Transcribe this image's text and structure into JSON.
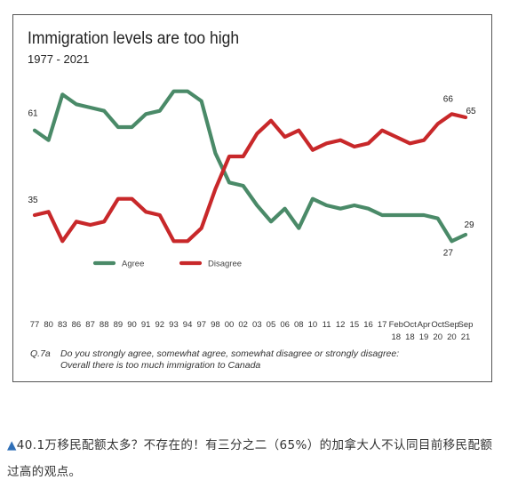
{
  "chart_data": {
    "type": "line",
    "title": "Immigration levels are too high",
    "subtitle": "1977 - 2021",
    "x_labels": [
      [
        "77"
      ],
      [
        "80"
      ],
      [
        "83"
      ],
      [
        "86"
      ],
      [
        "87"
      ],
      [
        "88"
      ],
      [
        "89"
      ],
      [
        "90"
      ],
      [
        "91"
      ],
      [
        "92"
      ],
      [
        "93"
      ],
      [
        "94"
      ],
      [
        "97"
      ],
      [
        "98"
      ],
      [
        "00"
      ],
      [
        "02"
      ],
      [
        "03"
      ],
      [
        "05"
      ],
      [
        "06"
      ],
      [
        "08"
      ],
      [
        "10"
      ],
      [
        "11"
      ],
      [
        "12"
      ],
      [
        "15"
      ],
      [
        "16"
      ],
      [
        "17"
      ],
      [
        "Feb",
        "18"
      ],
      [
        "Oct",
        "18"
      ],
      [
        "Apr",
        "19"
      ],
      [
        "Oct",
        "20"
      ],
      [
        "Sep",
        "20"
      ],
      [
        "Sep",
        "21"
      ]
    ],
    "series": [
      {
        "name": "Agree",
        "color": "#4a8a68",
        "values": [
          61,
          58,
          72,
          69,
          68,
          67,
          62,
          62,
          66,
          67,
          73,
          73,
          70,
          54,
          45,
          44,
          38,
          33,
          37,
          31,
          40,
          38,
          37,
          38,
          37,
          35,
          35,
          35,
          35,
          34,
          27,
          29
        ]
      },
      {
        "name": "Disagree",
        "color": "#c8282a",
        "values": [
          35,
          36,
          27,
          33,
          32,
          33,
          40,
          40,
          36,
          35,
          27,
          27,
          31,
          43,
          53,
          53,
          60,
          64,
          59,
          61,
          55,
          57,
          58,
          56,
          57,
          61,
          59,
          57,
          58,
          63,
          66,
          65
        ]
      }
    ],
    "data_labels": [
      {
        "series": "Agree",
        "index": 0,
        "text": "61"
      },
      {
        "series": "Disagree",
        "index": 0,
        "text": "35"
      },
      {
        "series": "Disagree",
        "index": 30,
        "text": "66"
      },
      {
        "series": "Disagree",
        "index": 31,
        "text": "65"
      },
      {
        "series": "Agree",
        "index": 30,
        "text": "27"
      },
      {
        "series": "Agree",
        "index": 31,
        "text": "29"
      }
    ],
    "legend_position": "bottom-left",
    "grid": false
  },
  "question": {
    "number": "Q.7a",
    "line1": "Do you strongly agree, somewhat agree, somewhat disagree or strongly  disagree:",
    "line2": "Overall there is too much immigration to Canada"
  },
  "caption": {
    "marker": "▲",
    "text": "40.1万移民配额太多？不存在的！有三分之二（65%）的加拿大人不认同目前移民配额过高的观点。"
  }
}
